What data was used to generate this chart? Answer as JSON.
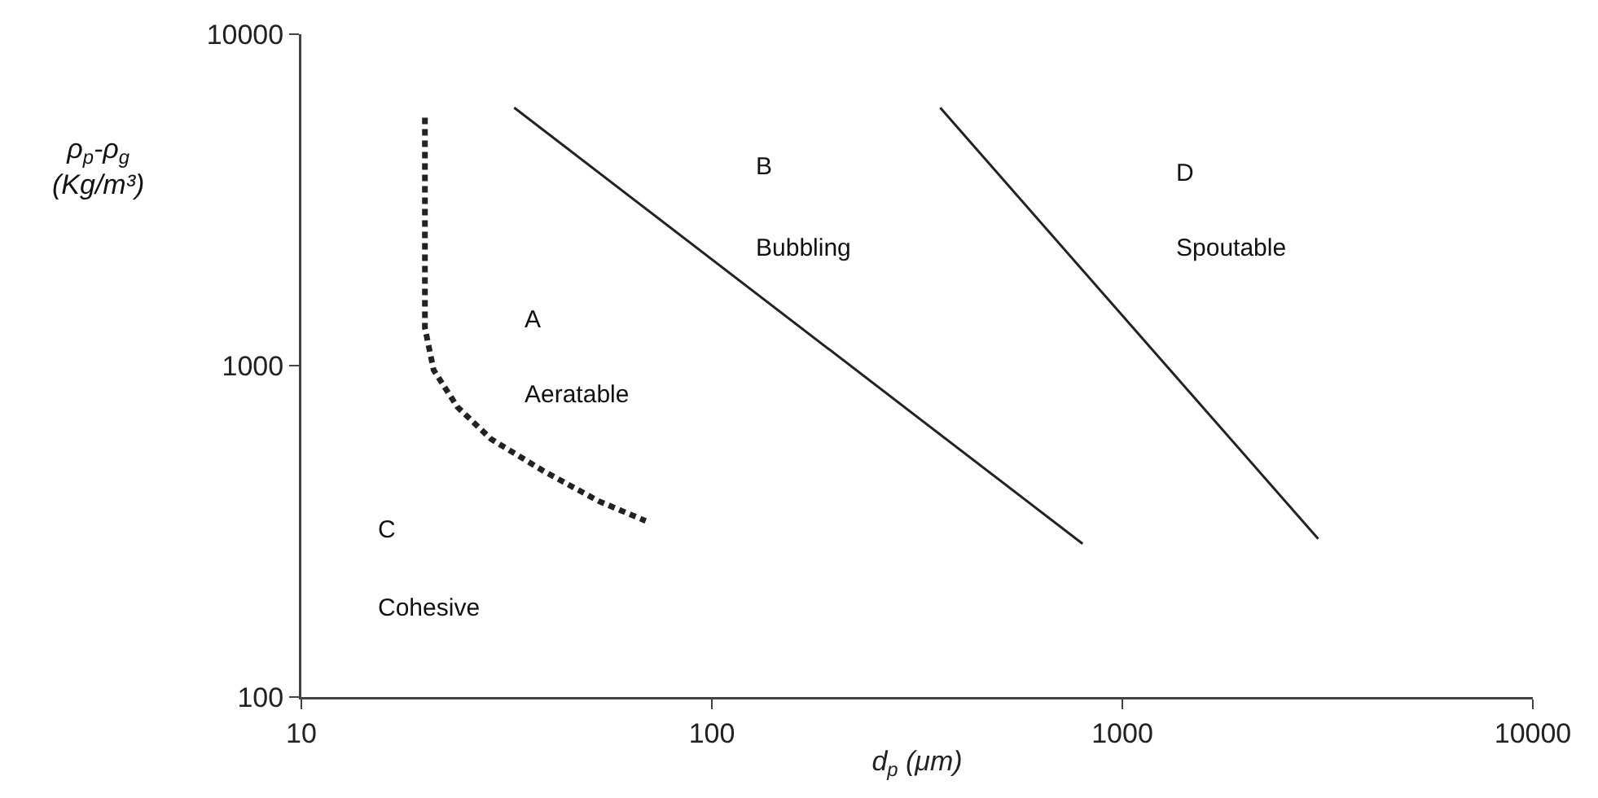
{
  "chart_data": {
    "type": "line",
    "xlabel": "d$_{p}$ (μm)",
    "ylabel": "ρ$_{p}$-ρ$_{g}$ (Kg/m³)",
    "log": "xy",
    "grid": false,
    "marker": "none",
    "xlim": [
      10,
      10000
    ],
    "xticks": [
      10,
      100,
      1000,
      10000
    ],
    "ylim": [
      100,
      10000
    ],
    "yticks": [
      100,
      1000,
      10000
    ],
    "series": [
      {
        "color": "#222222",
        "line_style": "dashed",
        "x": [
          20,
          20,
          20,
          21,
          24,
          29,
          39,
          53,
          69
        ],
        "values": [
          5600,
          2300,
          1300,
          970,
          750,
          600,
          480,
          390,
          340
        ]
      },
      {
        "color": "#222222",
        "line_style": "solid",
        "x": [
          33,
          800
        ],
        "values": [
          6000,
          290
        ]
      },
      {
        "color": "#222222",
        "line_style": "solid",
        "x": [
          360,
          3000
        ],
        "values": [
          6000,
          300
        ]
      }
    ],
    "annotations": [
      "A",
      "Aeratable",
      "B",
      "Bubbling",
      "C",
      "Cohesive",
      "D",
      "Spoutable"
    ]
  }
}
